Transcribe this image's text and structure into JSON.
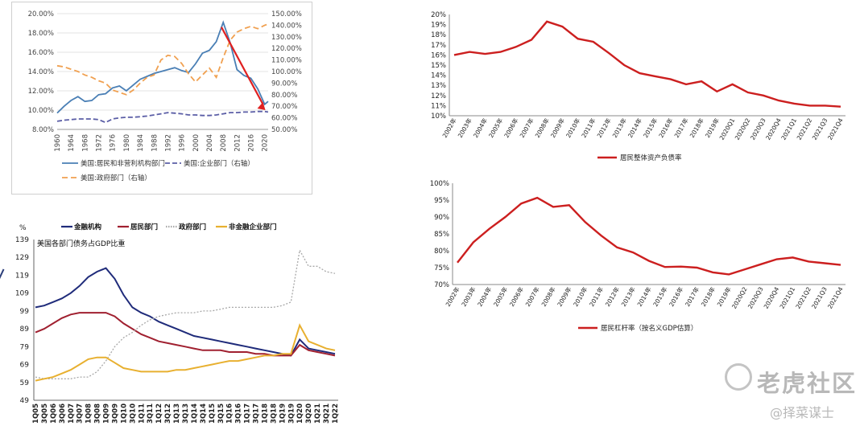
{
  "watermark": {
    "brand": "老虎社区",
    "author": "@择菜谋士"
  },
  "chart_data": [
    {
      "id": "p1",
      "type": "line",
      "title": "",
      "x": [
        1960,
        1962,
        1964,
        1966,
        1968,
        1970,
        1972,
        1974,
        1976,
        1978,
        1980,
        1982,
        1984,
        1986,
        1988,
        1990,
        1992,
        1994,
        1996,
        1998,
        2000,
        2002,
        2004,
        2006,
        2008,
        2010,
        2012,
        2014,
        2016,
        2018,
        2020,
        2021
      ],
      "xticks": [
        "1960",
        "1964",
        "1968",
        "1972",
        "1976",
        "1980",
        "1984",
        "1988",
        "1992",
        "1996",
        "2000",
        "2004",
        "2008",
        "2012",
        "2016",
        "2020"
      ],
      "ylim_left": [
        8,
        20
      ],
      "yticks_left": [
        "8.00%",
        "10.00%",
        "12.00%",
        "14.00%",
        "16.00%",
        "18.00%",
        "20.00%"
      ],
      "ylim_right": [
        50,
        150
      ],
      "yticks_right": [
        "50.00%",
        "60.00%",
        "70.00%",
        "80.00%",
        "90.00%",
        "100.00%",
        "110.00%",
        "120.00%",
        "130.00%",
        "140.00%",
        "150.00%"
      ],
      "series": [
        {
          "name": "美国:居民和非营利机构部门",
          "axis": "left",
          "color": "#4a7fb5",
          "dash": "solid",
          "values": [
            9.7,
            10.4,
            11.0,
            11.4,
            10.9,
            11.0,
            11.6,
            11.7,
            12.3,
            12.5,
            12.0,
            12.6,
            13.2,
            13.5,
            13.8,
            14.0,
            14.2,
            14.4,
            14.1,
            13.9,
            14.8,
            15.9,
            16.2,
            17.1,
            19.1,
            17.0,
            14.2,
            13.6,
            13.3,
            12.2,
            10.6,
            10.9
          ]
        },
        {
          "name": "美国:企业部门（右轴）",
          "axis": "right",
          "color": "#5b5ea6",
          "dash": "6,3",
          "values": [
            57,
            58,
            58.5,
            59,
            59,
            59,
            58.5,
            56,
            59,
            60,
            60.5,
            60.5,
            61,
            61.5,
            62.5,
            63.5,
            64.5,
            64,
            63.5,
            62.5,
            62.5,
            62,
            62,
            62.5,
            63.5,
            64.5,
            64.5,
            65,
            65,
            65.5,
            65.5,
            65
          ]
        },
        {
          "name": "美国:政府部门（右轴）",
          "axis": "right",
          "color": "#f0a050",
          "dash": "7,4",
          "values": [
            105,
            104,
            102,
            100,
            97,
            95,
            92,
            90,
            84,
            82,
            80,
            84,
            90,
            95,
            97,
            110,
            114,
            113,
            107,
            98,
            91,
            97,
            103,
            95,
            112,
            127,
            134,
            137,
            139,
            137,
            140,
            141
          ]
        }
      ],
      "annotation": "red down arrow"
    },
    {
      "id": "p2",
      "type": "line",
      "unit": "%",
      "title": "美国各部门债务占GDP比重",
      "xticks": [
        "1Q05",
        "3Q05",
        "1Q06",
        "3Q06",
        "1Q07",
        "3Q07",
        "1Q08",
        "3Q08",
        "1Q09",
        "3Q09",
        "1Q10",
        "3Q10",
        "1Q11",
        "3Q11",
        "1Q12",
        "3Q12",
        "1Q13",
        "3Q13",
        "1Q14",
        "3Q14",
        "1Q15",
        "3Q15",
        "1Q16",
        "3Q16",
        "1Q17",
        "3Q17",
        "1Q18",
        "3Q18",
        "1Q19",
        "3Q19",
        "1Q20",
        "3Q20",
        "1Q21",
        "3Q21",
        "1Q22"
      ],
      "ylim": [
        49,
        139
      ],
      "yticks": [
        "49",
        "59",
        "69",
        "79",
        "89",
        "99",
        "109",
        "119",
        "129",
        "139"
      ],
      "series": [
        {
          "name": "金融机构",
          "color": "#1f2b7a",
          "dash": "solid",
          "values": [
            101,
            102,
            104,
            106,
            109,
            113,
            118,
            121,
            123,
            117,
            108,
            101,
            98,
            96,
            93,
            91,
            89,
            87,
            85,
            84,
            83,
            82,
            81,
            80,
            79,
            78,
            77,
            76,
            75,
            74,
            83,
            78,
            77,
            76,
            75
          ]
        },
        {
          "name": "居民部门",
          "color": "#a02030",
          "dash": "solid",
          "values": [
            87,
            89,
            92,
            95,
            97,
            98,
            98,
            98,
            98,
            96,
            92,
            89,
            86,
            84,
            82,
            81,
            80,
            79,
            78,
            77,
            77,
            77,
            76,
            76,
            76,
            75,
            75,
            74,
            74,
            74,
            80,
            77,
            76,
            75,
            74
          ]
        },
        {
          "name": "政府部门",
          "color": "#a8a8a8",
          "dash": "2,2",
          "values": [
            62,
            61,
            61,
            61,
            61,
            62,
            62,
            65,
            71,
            79,
            84,
            87,
            91,
            94,
            96,
            97,
            98,
            98,
            98,
            99,
            99,
            100,
            101,
            101,
            101,
            101,
            101,
            101,
            102,
            104,
            133,
            124,
            124,
            121,
            120
          ]
        },
        {
          "name": "非金融企业部门",
          "color": "#e8b030",
          "dash": "solid",
          "values": [
            60,
            61,
            62,
            64,
            66,
            69,
            72,
            73,
            73,
            70,
            67,
            66,
            65,
            65,
            65,
            65,
            66,
            66,
            67,
            68,
            69,
            70,
            71,
            71,
            72,
            73,
            74,
            74,
            75,
            75,
            91,
            82,
            80,
            78,
            77
          ]
        }
      ]
    },
    {
      "id": "p3",
      "type": "line",
      "x": [
        "2002年",
        "2003年",
        "2004年",
        "2005年",
        "2006年",
        "2007年",
        "2008年",
        "2009年",
        "2010年",
        "2011年",
        "2012年",
        "2013年",
        "2014年",
        "2015年",
        "2016年",
        "2017年",
        "2018年",
        "2019年",
        "2020Q1",
        "2020Q2",
        "2020Q3",
        "2020Q4",
        "2021Q1",
        "2021Q2",
        "2021Q3",
        "2021Q4"
      ],
      "ylim": [
        10,
        20
      ],
      "yticks": [
        "10%",
        "11%",
        "12%",
        "13%",
        "14%",
        "15%",
        "16%",
        "17%",
        "18%",
        "19%",
        "20%"
      ],
      "series": [
        {
          "name": "居民整体资产负债率",
          "color": "#cc1f1f",
          "values": [
            16.0,
            16.3,
            16.1,
            16.3,
            16.8,
            17.5,
            19.3,
            18.8,
            17.6,
            17.3,
            16.2,
            15.0,
            14.2,
            13.9,
            13.6,
            13.1,
            13.4,
            12.4,
            13.1,
            12.3,
            12.0,
            11.5,
            11.2,
            11.0,
            11.0,
            10.9
          ]
        }
      ]
    },
    {
      "id": "p4",
      "type": "line",
      "x": [
        "2002年",
        "2003年",
        "2004年",
        "2005年",
        "2006年",
        "2007年",
        "2008年",
        "2009年",
        "2010年",
        "2011年",
        "2012年",
        "2013年",
        "2014年",
        "2015年",
        "2016年",
        "2017年",
        "2018年",
        "2019年",
        "2020Q2",
        "2020Q3",
        "2020Q4",
        "2021Q1",
        "2021Q2",
        "2021Q3",
        "2021Q4"
      ],
      "ylim": [
        70,
        100
      ],
      "yticks": [
        "70%",
        "75%",
        "80%",
        "85%",
        "90%",
        "95%",
        "100%"
      ],
      "series": [
        {
          "name": "居民杠杆率（按名义GDP估算）",
          "color": "#cc1f1f",
          "values": [
            76.5,
            82.5,
            86.5,
            90,
            94,
            95.7,
            93,
            93.5,
            88.5,
            84.5,
            81,
            79.5,
            77,
            75.2,
            75.3,
            75,
            73.6,
            73,
            74.5,
            76,
            77.5,
            78,
            76.8,
            76.3,
            75.8
          ]
        }
      ]
    }
  ]
}
